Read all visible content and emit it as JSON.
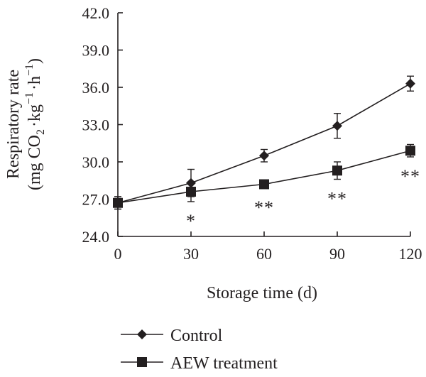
{
  "chart_data": {
    "type": "line",
    "xlabel": "Storage time (d)",
    "ylabel_line1": "Respiratory rate",
    "ylabel_line2": {
      "prefix": "(mg CO",
      "sub": "2",
      "mid1": "·kg",
      "sup1": "−1",
      "mid2": "·h",
      "sup2": "−1",
      "suffix": ")"
    },
    "x_ticks": [
      "0",
      "30",
      "60",
      "90",
      "120"
    ],
    "y_ticks": [
      "24.0",
      "27.0",
      "30.0",
      "33.0",
      "36.0",
      "39.0",
      "42.0"
    ],
    "xlim": [
      0,
      120
    ],
    "ylim": [
      24,
      42
    ],
    "x": [
      0,
      30,
      60,
      90,
      120
    ],
    "series": [
      {
        "name": "Control",
        "marker": "diamond",
        "values": [
          26.7,
          28.3,
          30.5,
          32.9,
          36.3
        ],
        "errors": [
          0.5,
          1.1,
          0.5,
          1.0,
          0.6
        ]
      },
      {
        "name": "AEW treatment",
        "marker": "square",
        "values": [
          26.7,
          27.6,
          28.2,
          29.3,
          30.9
        ],
        "errors": [
          0.5,
          0.8,
          0.3,
          0.7,
          0.5
        ]
      }
    ],
    "annotations": [
      {
        "x": 30,
        "text": "*"
      },
      {
        "x": 60,
        "text": "**"
      },
      {
        "x": 90,
        "text": "**"
      },
      {
        "x": 120,
        "text": "**"
      }
    ],
    "legend_position": "bottom-left"
  }
}
